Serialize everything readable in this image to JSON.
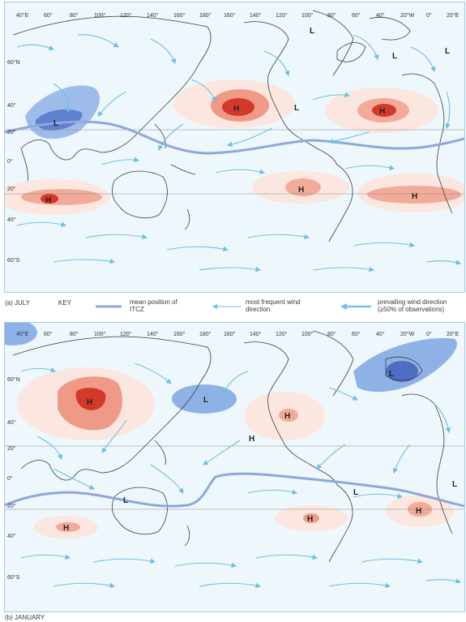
{
  "panels": [
    {
      "caption": "(a)  JULY",
      "top_labels": [
        "40°E",
        "60°",
        "80°",
        "100°",
        "120°",
        "140°",
        "160°",
        "180°",
        "160°",
        "140°",
        "120°",
        "100°",
        "80°",
        "60°",
        "40°",
        "20°W",
        "0°",
        "20°E"
      ],
      "lat_labels": [
        "60°N",
        "40°",
        "20°",
        "0°",
        "20°",
        "40°",
        "60°S"
      ],
      "pressure_labels": [
        {
          "text": "H",
          "kind": "high"
        },
        {
          "text": "H",
          "kind": "high"
        },
        {
          "text": "H",
          "kind": "high"
        },
        {
          "text": "H",
          "kind": "high"
        },
        {
          "text": "H",
          "kind": "high"
        },
        {
          "text": "L",
          "kind": "low"
        },
        {
          "text": "L",
          "kind": "low"
        },
        {
          "text": "L",
          "kind": "low"
        },
        {
          "text": "L",
          "kind": "low"
        },
        {
          "text": "L",
          "kind": "low"
        }
      ]
    },
    {
      "caption": "(b)  JANUARY",
      "top_labels": [
        "40°E",
        "60°",
        "80°",
        "100°",
        "120°",
        "140°",
        "160°",
        "180°",
        "160°",
        "140°",
        "120°",
        "100°",
        "80°",
        "60°",
        "40°",
        "20°W",
        "0°",
        "20°E"
      ],
      "lat_labels": [
        "60°N",
        "40°",
        "20°",
        "0°",
        "20°",
        "40°",
        "60°S"
      ],
      "pressure_labels": [
        {
          "text": "H",
          "kind": "high"
        },
        {
          "text": "H",
          "kind": "high"
        },
        {
          "text": "H",
          "kind": "high"
        },
        {
          "text": "H",
          "kind": "high"
        },
        {
          "text": "H",
          "kind": "high"
        },
        {
          "text": "H",
          "kind": "high"
        },
        {
          "text": "L",
          "kind": "low"
        },
        {
          "text": "L",
          "kind": "low"
        },
        {
          "text": "L",
          "kind": "low"
        },
        {
          "text": "L",
          "kind": "low"
        },
        {
          "text": "L",
          "kind": "low"
        }
      ]
    }
  ],
  "key": {
    "title": "KEY",
    "itcz": "mean position of ITCZ",
    "frequent": "most frequent wind direction",
    "prevailing": "prevailing wind direction (≥50% of observations)"
  },
  "colors": {
    "ocean": "#eef7fc",
    "high_pale": "#f9ddd2",
    "high_mid": "#ee9a86",
    "high_dark": "#d2392a",
    "low_pale": "#cfe1f5",
    "low_mid": "#8fb2e6",
    "low_dark": "#4d6fc2",
    "itcz": "#8ea7dc",
    "arrow": "#6cc0e2",
    "coast": "#3c3c3c"
  },
  "icons": [
    "wind-arrow-icon",
    "prevailing-wind-arrow-icon",
    "itcz-line-icon"
  ]
}
